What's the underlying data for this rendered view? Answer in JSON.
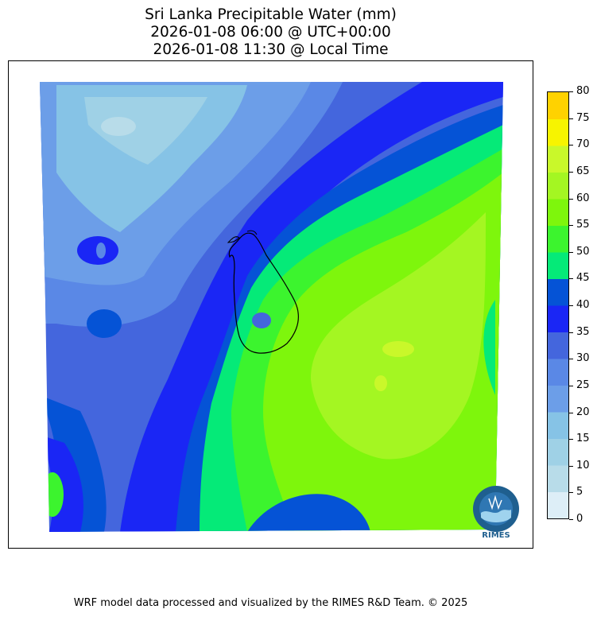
{
  "title": {
    "line1": "Sri Lanka Precipitable Water (mm)",
    "line2": "2026-01-08 06:00 @ UTC+00:00",
    "line3": "2026-01-08 11:30 @ Local Time"
  },
  "colorbar": {
    "levels": [
      0,
      5,
      10,
      15,
      20,
      25,
      30,
      35,
      40,
      45,
      50,
      55,
      60,
      65,
      70,
      75,
      80
    ],
    "tick_labels": [
      "80",
      "75",
      "70",
      "65",
      "60",
      "55",
      "50",
      "45",
      "40",
      "35",
      "30",
      "25",
      "20",
      "15",
      "10",
      "5",
      "0"
    ],
    "colors": [
      "#ddeef7",
      "#b8dce9",
      "#9fd1e6",
      "#86c3e6",
      "#6c9ee8",
      "#5a88e6",
      "#4466dd",
      "#1a26f5",
      "#0553d6",
      "#05ea78",
      "#3cf42e",
      "#7ef60c",
      "#a4f622",
      "#c9f82a",
      "#f7f400",
      "#ffd200"
    ]
  },
  "logo": {
    "text": "RIMES",
    "colors": {
      "ring": "#1f5f8f",
      "inner": "#2f77b3",
      "water": "#9fd3ee"
    }
  },
  "footer": {
    "text": "WRF model data processed and visualized by the RIMES R&D Team. © 2025"
  }
}
